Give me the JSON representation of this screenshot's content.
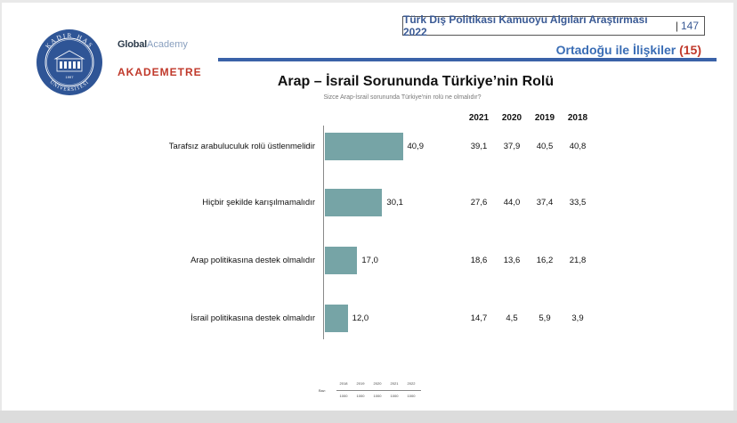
{
  "header": {
    "report_title": "Türk Dış Politikası Kamuoyu Algıları Araştırması 2022",
    "page_number": "147",
    "section_title": "Ortadoğu ile İlişkiler",
    "section_number": "(15)"
  },
  "brands": {
    "university_logo_text": "KADIR HAS ÜNİVERSİTESİ",
    "university_year": "1997",
    "global_bold": "Global",
    "global_light": "Academy",
    "akademetre": "AKADEMETRE"
  },
  "chart_data": {
    "type": "bar",
    "title": "Arap – İsrail Sorununda Türkiye’nin Rolü",
    "subtitle": "Sizce Arap-İsrail sorununda Türkiye'nin rolü ne olmalıdır?",
    "categories": [
      "Tarafsız arabuluculuk rolü üstlenmelidir",
      "Hiçbir şekilde karışılmamalıdır",
      "Arap politikasına destek olmalıdır",
      "İsrail politikasına destek olmalıdır"
    ],
    "values": [
      40.9,
      30.1,
      17.0,
      12.0
    ],
    "value_labels": [
      "40,9",
      "30,1",
      "17,0",
      "12,0"
    ],
    "xlim": [
      0,
      100
    ],
    "comparison_years": [
      "2021",
      "2020",
      "2019",
      "2018"
    ],
    "comparison_values": [
      [
        "39,1",
        "37,9",
        "40,5",
        "40,8"
      ],
      [
        "27,6",
        "44,0",
        "37,4",
        "33,5"
      ],
      [
        "18,6",
        "13,6",
        "16,2",
        "21,8"
      ],
      [
        "14,7",
        "4,5",
        "5,9",
        "3,9"
      ]
    ],
    "bar_color": "#76a4a6"
  },
  "base_table": {
    "label": "Baz:",
    "years": [
      "2018",
      "2019",
      "2020",
      "2021",
      "2022"
    ],
    "counts": [
      "1000",
      "1000",
      "1000",
      "1000",
      "1000"
    ]
  }
}
